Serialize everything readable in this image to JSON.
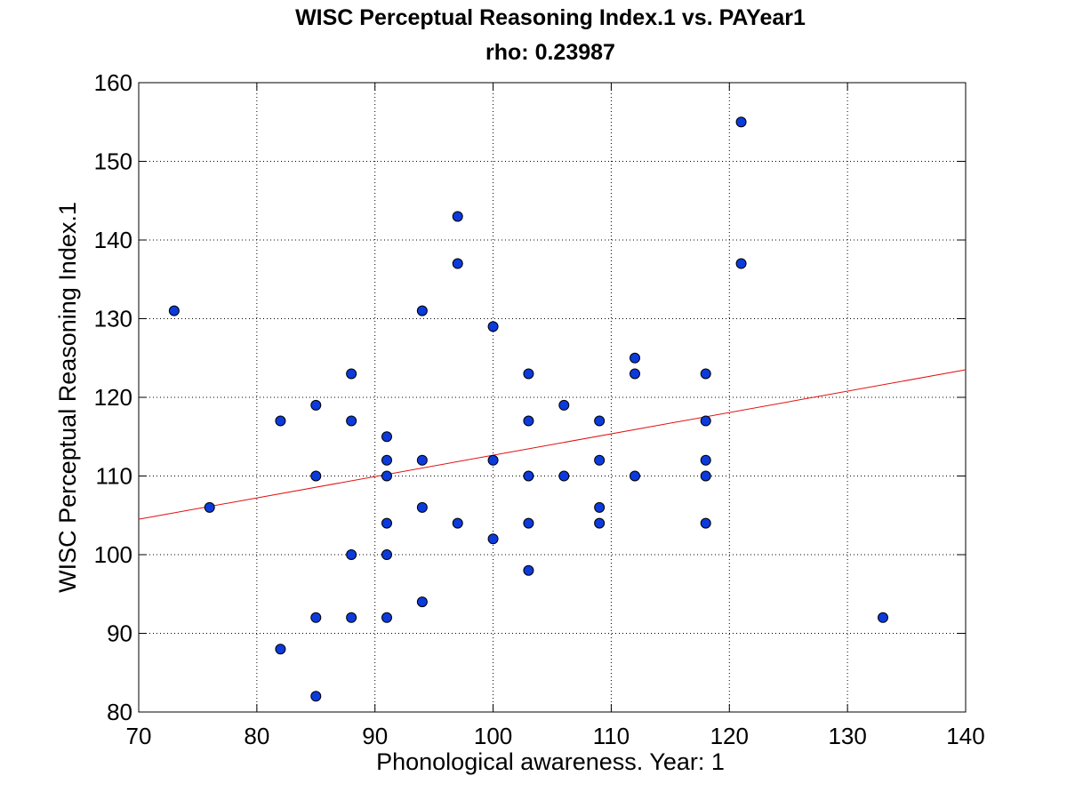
{
  "chart_data": {
    "type": "scatter",
    "title": "WISC Perceptual Reasoning Index.1 vs. PAYear1",
    "subtitle": "rho: 0.23987",
    "xlabel": "Phonological awareness. Year: 1",
    "ylabel": "WISC Perceptual Reasoning Index.1",
    "xlim": [
      70,
      140
    ],
    "ylim": [
      80,
      160
    ],
    "xticks": [
      70,
      80,
      90,
      100,
      110,
      120,
      130,
      140
    ],
    "yticks": [
      80,
      90,
      100,
      110,
      120,
      130,
      140,
      150,
      160
    ],
    "grid": true,
    "point_color": "#0b3bdc",
    "fit_color": "#e01010",
    "series": [
      {
        "points": [
          [
            73,
            131
          ],
          [
            76,
            106
          ],
          [
            82,
            117
          ],
          [
            82,
            88
          ],
          [
            85,
            119
          ],
          [
            85,
            110
          ],
          [
            85,
            92
          ],
          [
            85,
            82
          ],
          [
            88,
            123
          ],
          [
            88,
            117
          ],
          [
            88,
            100
          ],
          [
            88,
            92
          ],
          [
            91,
            115
          ],
          [
            91,
            112
          ],
          [
            91,
            110
          ],
          [
            91,
            104
          ],
          [
            91,
            100
          ],
          [
            91,
            92
          ],
          [
            94,
            131
          ],
          [
            94,
            112
          ],
          [
            94,
            106
          ],
          [
            94,
            94
          ],
          [
            97,
            143
          ],
          [
            97,
            137
          ],
          [
            97,
            104
          ],
          [
            100,
            129
          ],
          [
            100,
            112
          ],
          [
            100,
            102
          ],
          [
            103,
            123
          ],
          [
            103,
            117
          ],
          [
            103,
            110
          ],
          [
            103,
            104
          ],
          [
            103,
            98
          ],
          [
            106,
            119
          ],
          [
            106,
            110
          ],
          [
            109,
            117
          ],
          [
            109,
            112
          ],
          [
            109,
            106
          ],
          [
            109,
            104
          ],
          [
            112,
            125
          ],
          [
            112,
            123
          ],
          [
            112,
            110
          ],
          [
            118,
            123
          ],
          [
            118,
            117
          ],
          [
            118,
            112
          ],
          [
            118,
            110
          ],
          [
            118,
            104
          ],
          [
            121,
            155
          ],
          [
            121,
            137
          ],
          [
            133,
            92
          ]
        ]
      }
    ],
    "fit_line": [
      [
        70,
        104.5
      ],
      [
        140,
        123.5
      ]
    ]
  }
}
